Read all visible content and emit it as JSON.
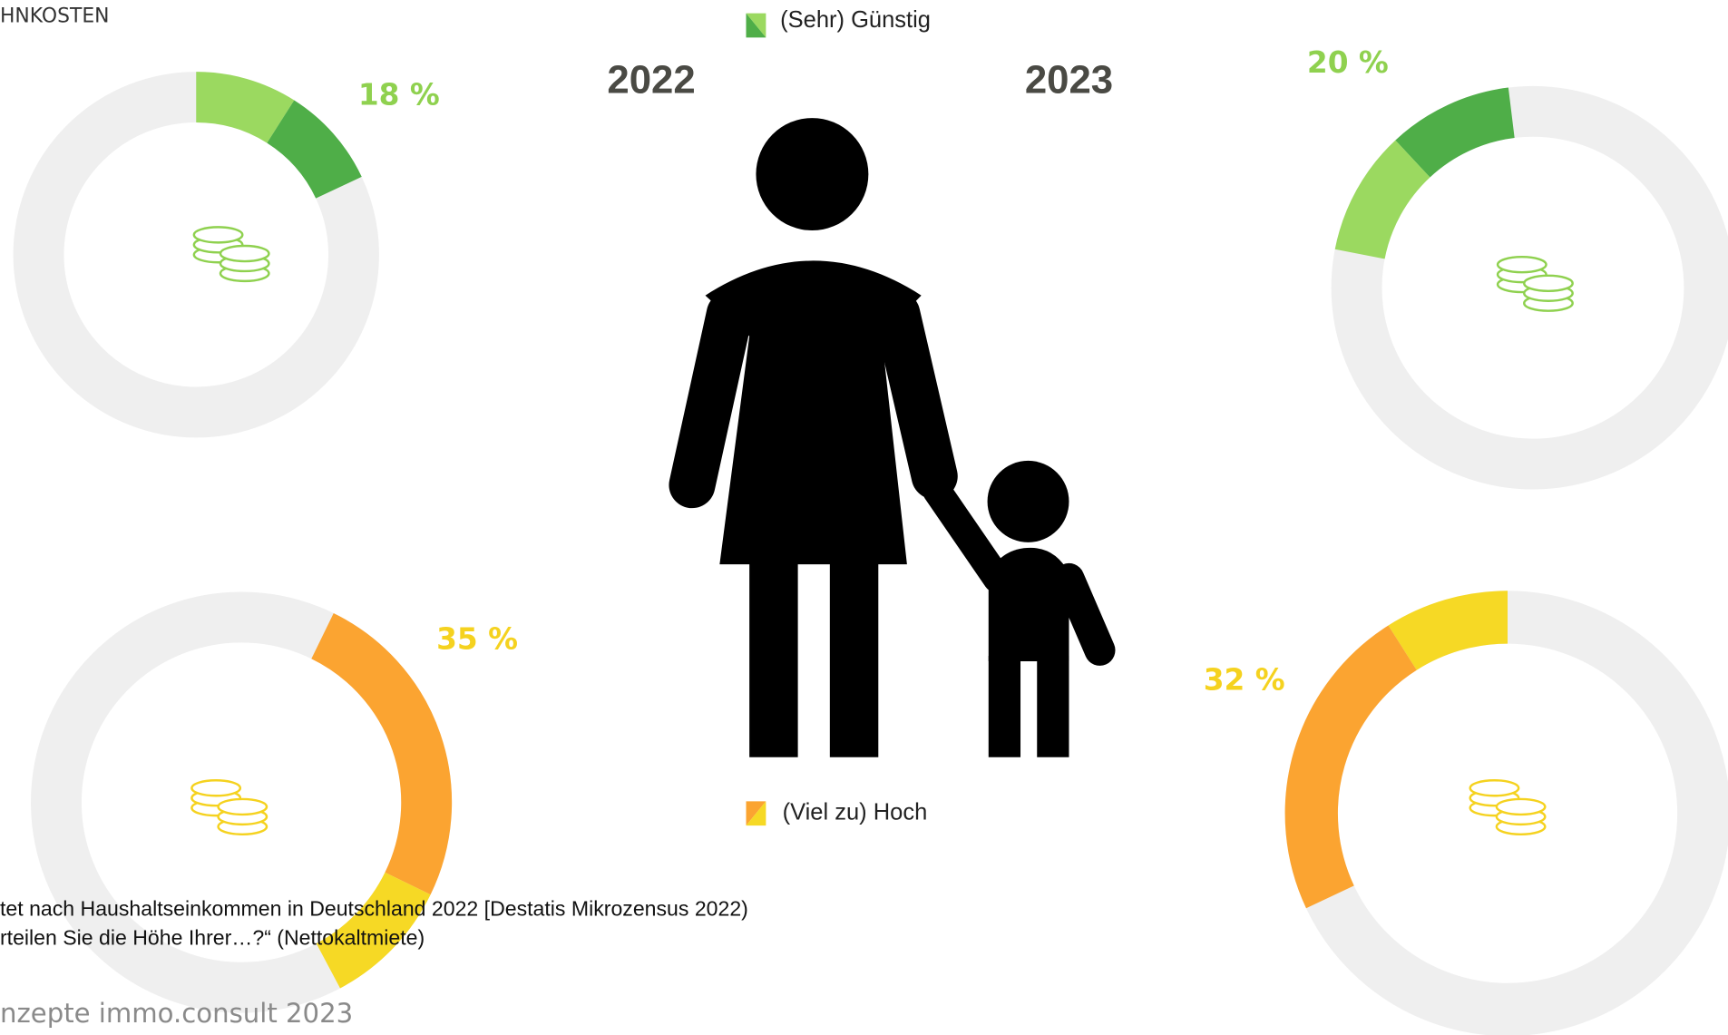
{
  "header": {
    "title": "HNKOSTEN"
  },
  "legend": {
    "low": "(Sehr) Günstig",
    "high": "(Viel zu) Hoch"
  },
  "years": [
    "2022",
    "2023"
  ],
  "chart_data": [
    {
      "type": "donut",
      "direction": "clockwise",
      "label": "18 %",
      "label_color": "#8fd14f",
      "icon_color": "#8fd14f",
      "track_color": "#efefef",
      "values": [
        9,
        9
      ],
      "colors": [
        "#9bd960",
        "#4fae48"
      ]
    },
    {
      "type": "donut",
      "direction": "counterclockwise",
      "label": "20 %",
      "label_color": "#8fd14f",
      "icon_color": "#8fd14f",
      "track_color": "#efefef",
      "values": [
        10,
        10
      ],
      "colors": [
        "#4fae48",
        "#9bd960"
      ]
    },
    {
      "type": "donut",
      "direction": "clockwise",
      "label": "35 %",
      "label_color": "#f5d21f",
      "icon_color": "#f5d21f",
      "track_color": "#efefef",
      "values": [
        25,
        10
      ],
      "colors": [
        "#fba431",
        "#f6d925"
      ]
    },
    {
      "type": "donut",
      "direction": "counterclockwise",
      "label": "32 %",
      "label_color": "#f5d21f",
      "icon_color": "#f5d21f",
      "track_color": "#efefef",
      "values": [
        9,
        23
      ],
      "colors": [
        "#f6d925",
        "#fba431"
      ]
    }
  ],
  "footnotes": [
    "tet nach Haushaltseinkommen in Deutschland 2022 [Destatis Mikrozensus 2022)",
    "rteilen Sie die Höhe Ihrer…?“ (Nettokaltmiete)"
  ],
  "footer": "nzepte immo.consult 2023"
}
